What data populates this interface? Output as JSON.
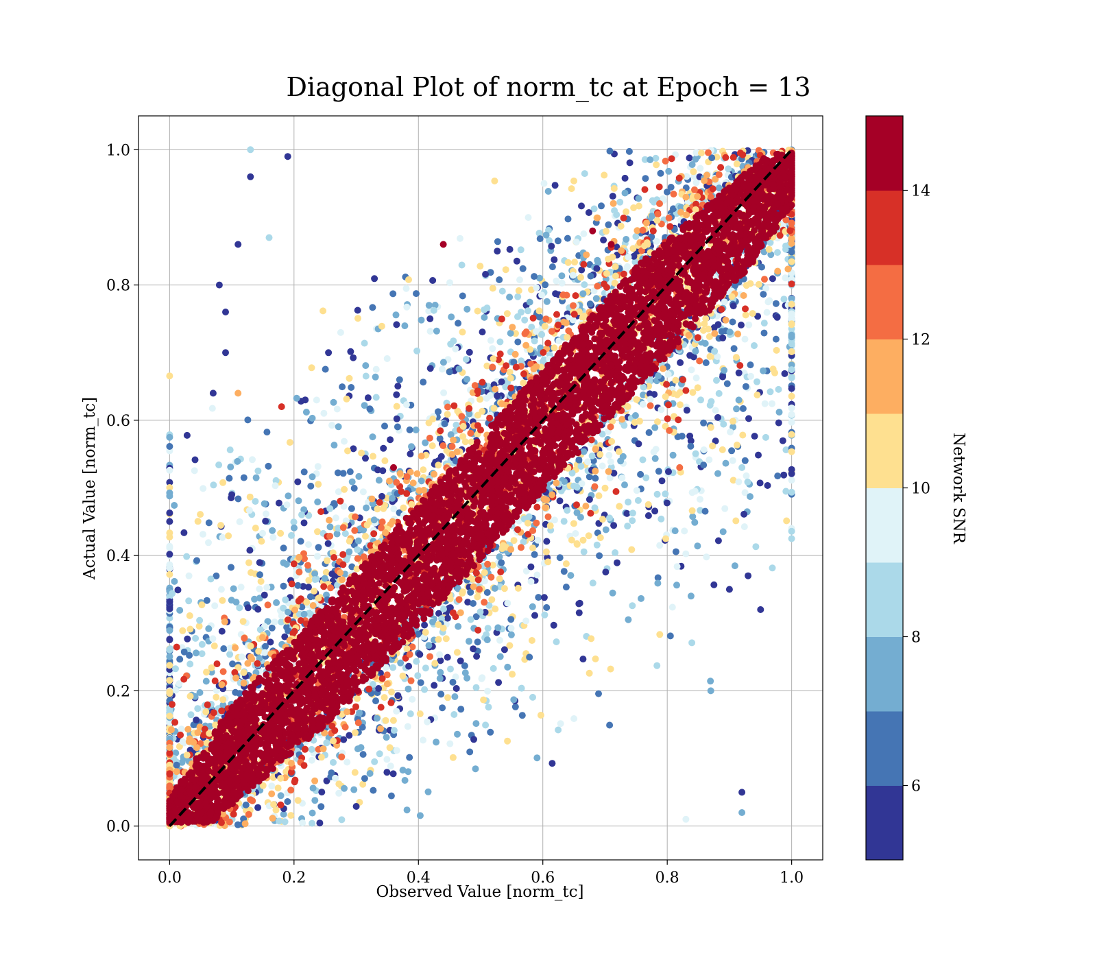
{
  "chart_data": {
    "type": "scatter",
    "title": "Diagonal Plot of norm_tc at Epoch = 13",
    "xlabel": "Observed Value [norm_tc]",
    "ylabel": "Actual Value [norm_tc]",
    "xlim": [
      -0.05,
      1.05
    ],
    "ylim": [
      -0.05,
      1.05
    ],
    "xticks": [
      "0.0",
      "0.2",
      "0.4",
      "0.6",
      "0.8",
      "1.0"
    ],
    "yticks": [
      "0.0",
      "0.2",
      "0.4",
      "0.6",
      "0.8",
      "1.0"
    ],
    "x_tick_values": [
      0.0,
      0.2,
      0.4,
      0.6,
      0.8,
      1.0
    ],
    "y_tick_values": [
      0.0,
      0.2,
      0.4,
      0.6,
      0.8,
      1.0
    ],
    "grid": true,
    "reference_line": {
      "style": "dashed",
      "color": "#000000",
      "from": [
        0.0,
        0.0
      ],
      "to": [
        1.0,
        1.0
      ]
    },
    "color_encoding": "Network SNR",
    "colorbar": {
      "label": "Network SNR",
      "vmin": 5,
      "vmax": 15,
      "tick_values": [
        6,
        8,
        10,
        12,
        14
      ],
      "ticks": [
        "6",
        "8",
        "10",
        "12",
        "14"
      ],
      "colors": [
        "#313695",
        "#4575b4",
        "#74add1",
        "#abd9e9",
        "#e0f3f8",
        "#fee090",
        "#fdae61",
        "#f46d43",
        "#d73027",
        "#a50026"
      ]
    },
    "description_of_distribution": {
      "high_snr_band_halfwidth": 0.09,
      "low_snr_spread": 0.45
    },
    "points_sample": [
      {
        "x": 0.13,
        "y": 1.0,
        "snr": 8.5
      },
      {
        "x": 0.19,
        "y": 0.99,
        "snr": 5.5
      },
      {
        "x": 0.13,
        "y": 0.96,
        "snr": 5.5
      },
      {
        "x": 0.08,
        "y": 0.8,
        "snr": 5.5
      },
      {
        "x": 0.09,
        "y": 0.76,
        "snr": 5.5
      },
      {
        "x": 0.11,
        "y": 0.86,
        "snr": 5.5
      },
      {
        "x": 0.16,
        "y": 0.87,
        "snr": 8.5
      },
      {
        "x": 0.11,
        "y": 0.64,
        "snr": 11.5
      },
      {
        "x": 0.18,
        "y": 0.62,
        "snr": 13.5
      },
      {
        "x": 0.09,
        "y": 0.7,
        "snr": 5.5
      },
      {
        "x": 0.07,
        "y": 0.64,
        "snr": 5.5
      },
      {
        "x": 0.1,
        "y": 0.49,
        "snr": 5.5
      },
      {
        "x": 0.93,
        "y": 0.37,
        "snr": 5.5
      },
      {
        "x": 0.95,
        "y": 0.32,
        "snr": 5.5
      },
      {
        "x": 0.92,
        "y": 0.02,
        "snr": 7.5
      },
      {
        "x": 0.92,
        "y": 0.05,
        "snr": 5.5
      },
      {
        "x": 0.83,
        "y": 0.01,
        "snr": 9.5
      },
      {
        "x": 0.92,
        "y": 0.53,
        "snr": 8.5
      },
      {
        "x": 0.82,
        "y": 0.53,
        "snr": 12.5
      },
      {
        "x": 0.87,
        "y": 0.2,
        "snr": 7.5
      },
      {
        "x": 0.71,
        "y": 0.86,
        "snr": 14.5
      },
      {
        "x": 0.68,
        "y": 0.88,
        "snr": 14.5
      },
      {
        "x": 0.44,
        "y": 0.86,
        "snr": 14.5
      },
      {
        "x": 0.36,
        "y": 0.53,
        "snr": 14.5
      },
      {
        "x": 0.9,
        "y": 0.35,
        "snr": 5.5
      }
    ]
  }
}
